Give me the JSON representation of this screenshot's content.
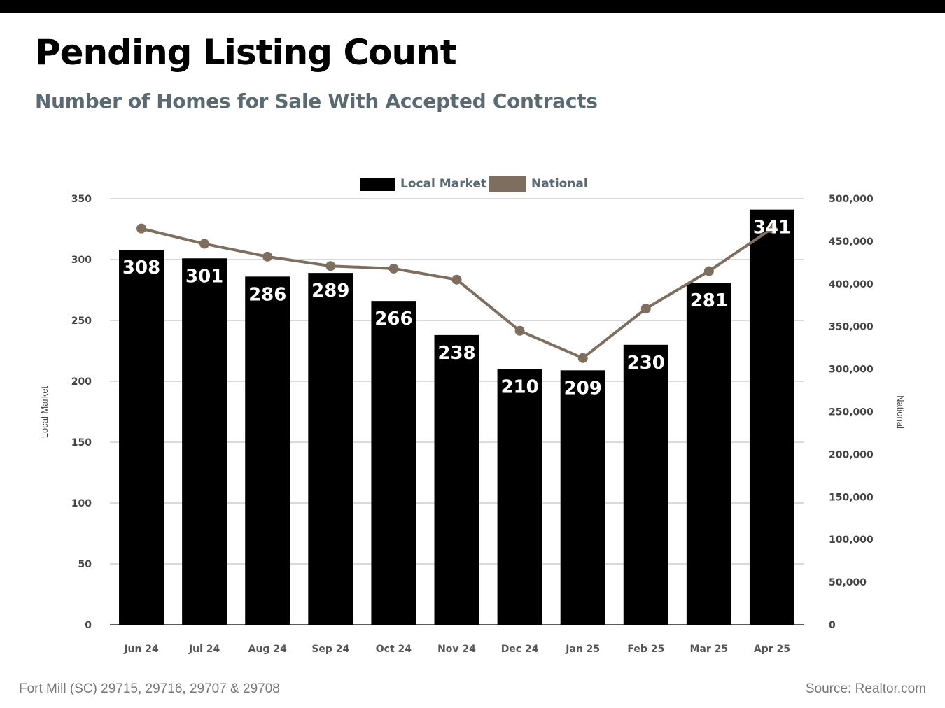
{
  "header": {
    "title": "Pending Listing Count",
    "subtitle": "Number of Homes for Sale With Accepted Contracts"
  },
  "footer": {
    "location": "Fort Mill (SC) 29715, 29716, 29707 & 29708",
    "source": "Source: Realtor.com"
  },
  "chart_data": {
    "type": "bar",
    "categories": [
      "Jun 24",
      "Jul 24",
      "Aug 24",
      "Sep 24",
      "Oct 24",
      "Nov 24",
      "Dec 24",
      "Jan 25",
      "Feb 25",
      "Mar 25",
      "Apr 25"
    ],
    "series": [
      {
        "name": "Local Market",
        "type": "bar",
        "axis": "left",
        "color": "#000000",
        "values": [
          308,
          301,
          286,
          289,
          266,
          238,
          210,
          209,
          230,
          281,
          341
        ]
      },
      {
        "name": "National",
        "type": "line",
        "axis": "right",
        "color": "#7d6e60",
        "values": [
          465000,
          447000,
          432000,
          421000,
          418000,
          405000,
          345000,
          313000,
          371000,
          415000,
          465000
        ]
      }
    ],
    "ylabel": "Local Market",
    "y2label": "National",
    "ylim": [
      0,
      350
    ],
    "y2lim": [
      0,
      500000
    ],
    "yticks": [
      "0",
      "50",
      "100",
      "150",
      "200",
      "250",
      "300",
      "350"
    ],
    "y2ticks": [
      "0",
      "50,000",
      "100,000",
      "150,000",
      "200,000",
      "250,000",
      "300,000",
      "350,000",
      "400,000",
      "450,000",
      "500,000"
    ],
    "legend": "top-center",
    "grid": true
  }
}
